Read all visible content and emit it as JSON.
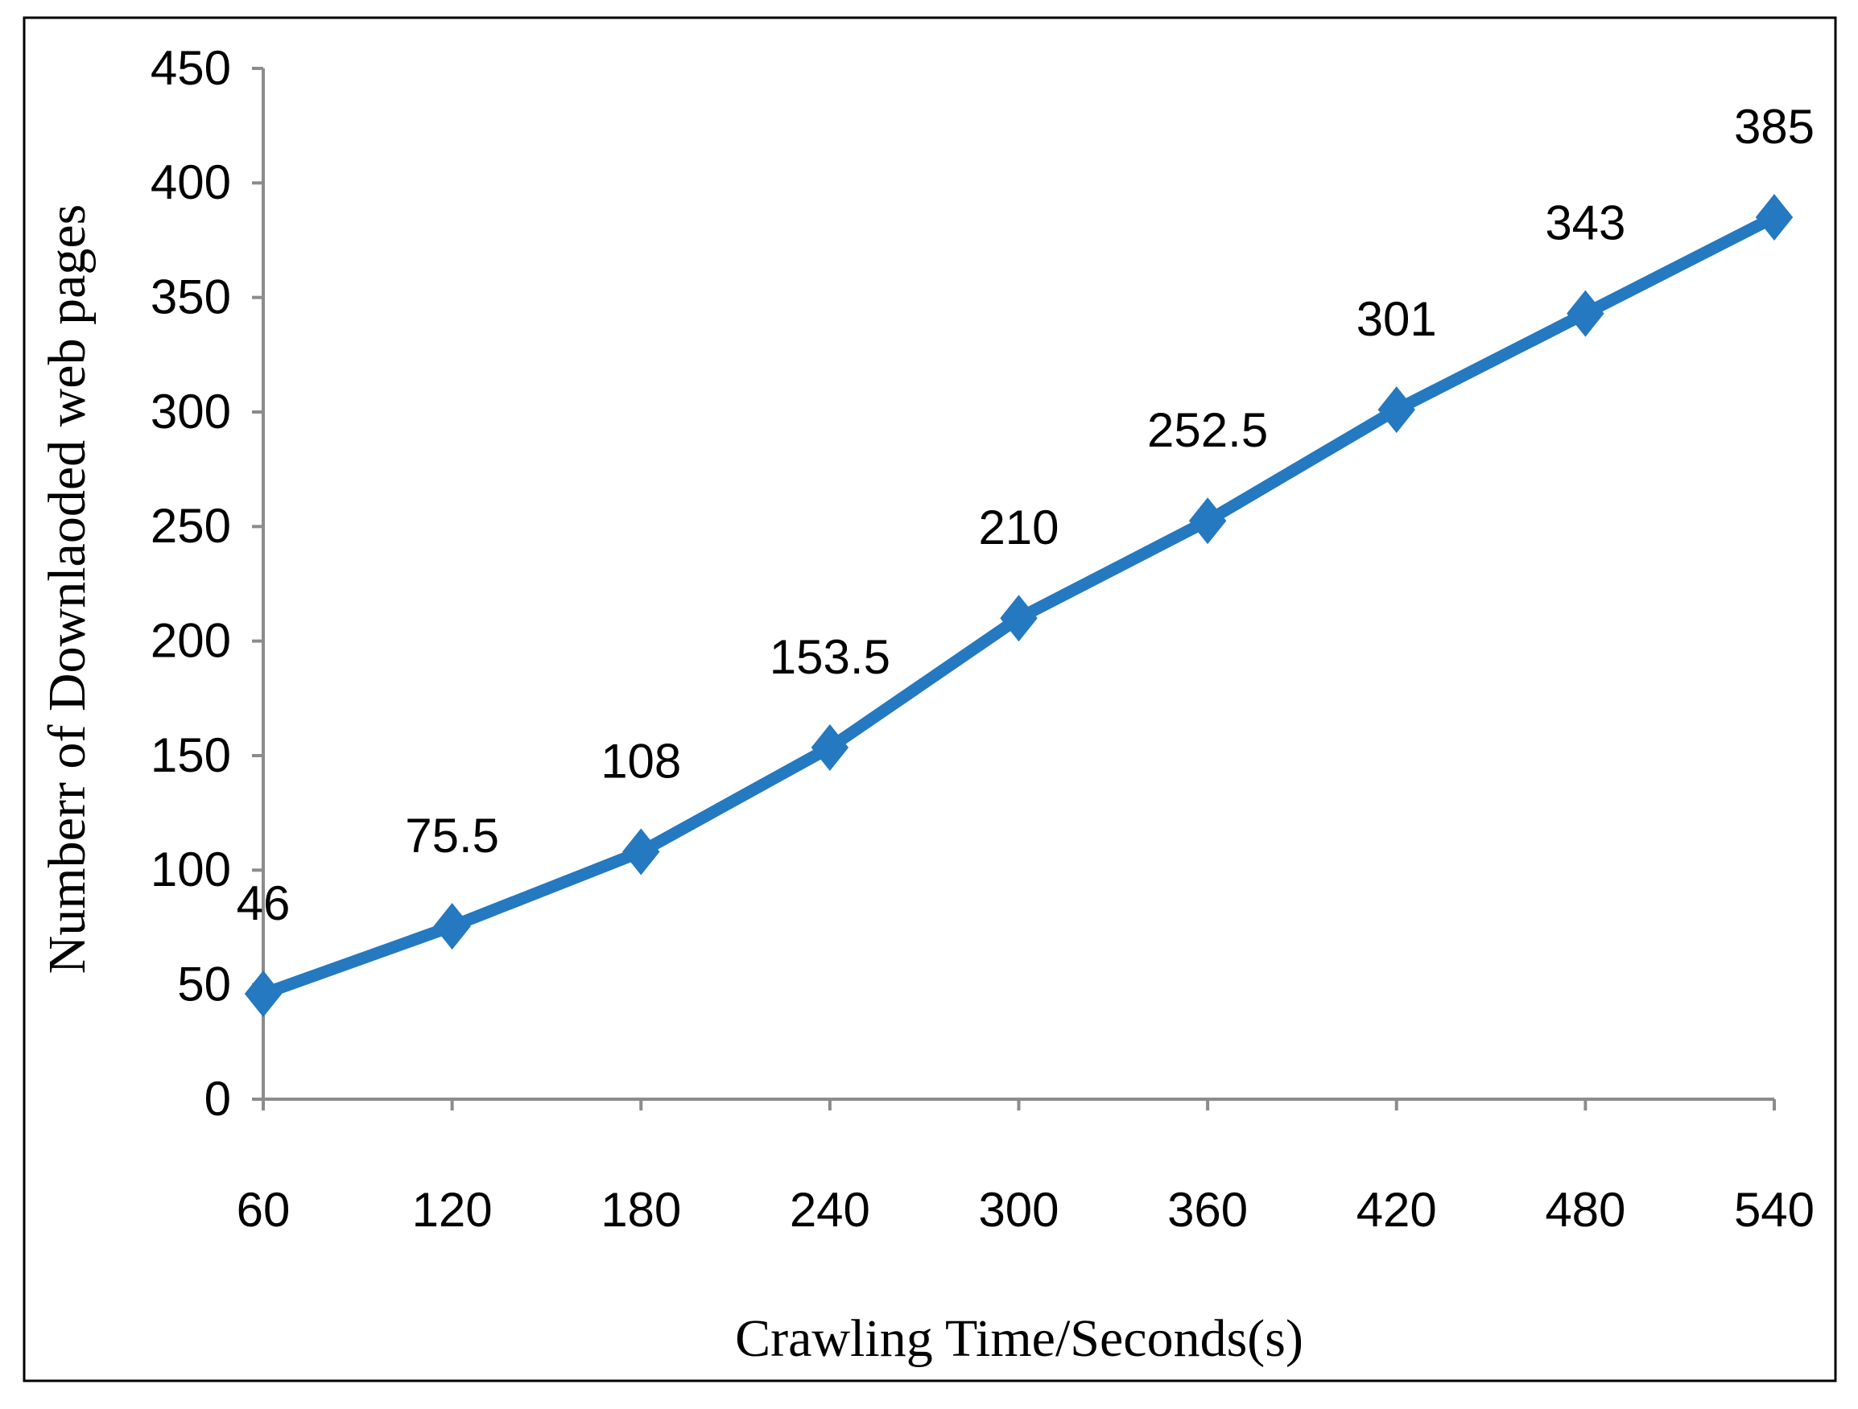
{
  "chart_data": {
    "type": "line",
    "x_label": "Crawling Time/Seconds(s)",
    "y_label": "Numberr of Downlaoded web pages",
    "x": [
      60,
      120,
      180,
      240,
      300,
      360,
      420,
      480,
      540
    ],
    "xlim": [
      60,
      540
    ],
    "xticks": [
      60,
      120,
      180,
      240,
      300,
      360,
      420,
      480,
      540
    ],
    "ylim": [
      0,
      450
    ],
    "yticks": [
      0,
      50,
      100,
      150,
      200,
      250,
      300,
      350,
      400,
      450
    ],
    "series": [
      {
        "color": "#2479c0",
        "values": [
          46,
          75.5,
          108,
          153.5,
          210,
          252.5,
          301,
          343,
          385
        ]
      }
    ],
    "grid": false
  }
}
